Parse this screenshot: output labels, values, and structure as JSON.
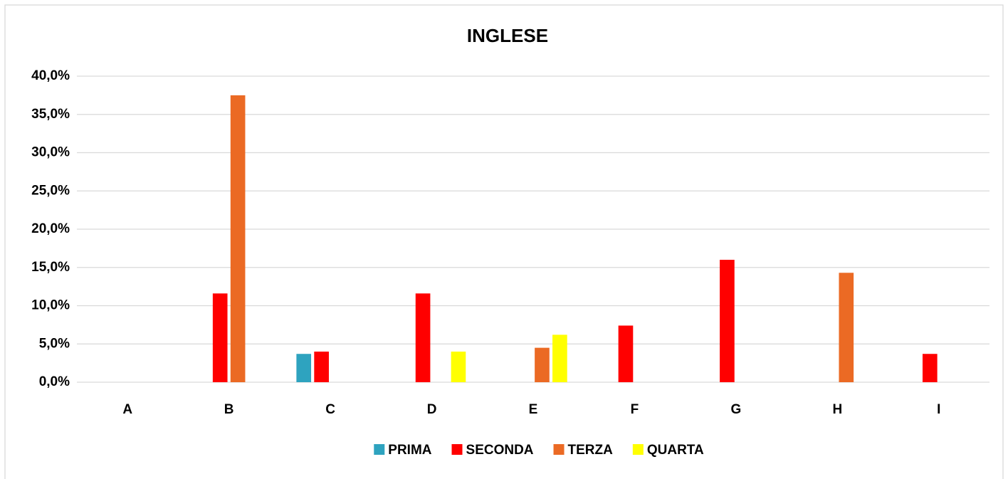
{
  "chart_data": {
    "type": "bar",
    "title": "INGLESE",
    "categories": [
      "A",
      "B",
      "C",
      "D",
      "E",
      "F",
      "G",
      "H",
      "I"
    ],
    "series": [
      {
        "name": "PRIMA",
        "color": "#2ea3bf",
        "values": [
          0,
          0,
          3.7,
          0,
          0,
          0,
          0,
          0,
          0
        ]
      },
      {
        "name": "SECONDA",
        "color": "#ff0000",
        "values": [
          0,
          11.6,
          4.0,
          11.6,
          0,
          7.4,
          16.0,
          0,
          3.7
        ]
      },
      {
        "name": "TERZA",
        "color": "#eb6a24",
        "values": [
          0,
          37.5,
          0,
          0,
          4.5,
          0,
          0,
          14.3,
          0
        ]
      },
      {
        "name": "QUARTA",
        "color": "#ffff00",
        "values": [
          0,
          0,
          0,
          4.0,
          6.2,
          0,
          0,
          0,
          0
        ]
      }
    ],
    "ylim": [
      0,
      40
    ],
    "yticks": [
      {
        "value": 0,
        "label": "0,0%"
      },
      {
        "value": 5,
        "label": "5,0%"
      },
      {
        "value": 10,
        "label": "10,0%"
      },
      {
        "value": 15,
        "label": "15,0%"
      },
      {
        "value": 20,
        "label": "20,0%"
      },
      {
        "value": 25,
        "label": "25,0%"
      },
      {
        "value": 30,
        "label": "30,0%"
      },
      {
        "value": 35,
        "label": "35,0%"
      },
      {
        "value": 40,
        "label": "40,0%"
      }
    ],
    "grid": true,
    "legend": "bottom"
  }
}
